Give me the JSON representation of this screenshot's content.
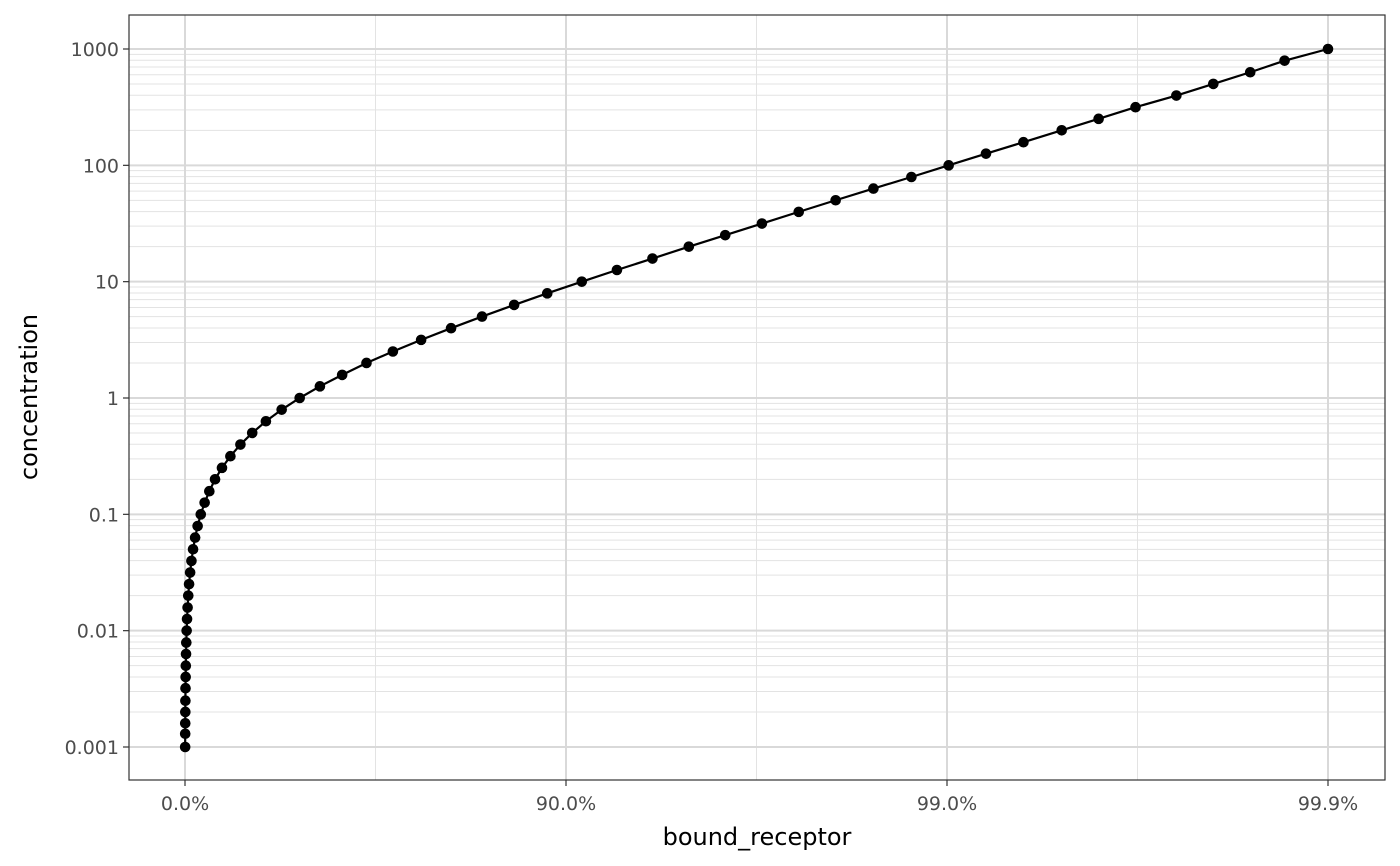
{
  "chart_data": {
    "type": "line",
    "xlabel": "bound_receptor",
    "ylabel": "concentration",
    "x_scale": "logit-percent",
    "y_scale": "log10",
    "grid": true,
    "legend": "none",
    "series_color": "#000000",
    "xlim": [
      0.0,
      0.999
    ],
    "ylim": [
      0.001,
      1000
    ],
    "x_ticks": [
      {
        "value": 0.0,
        "label": "0.0%"
      },
      {
        "value": 0.9,
        "label": "90.0%"
      },
      {
        "value": 0.99,
        "label": "99.0%"
      },
      {
        "value": 0.999,
        "label": "99.9%"
      }
    ],
    "y_ticks": [
      {
        "value": 0.001,
        "label": "0.001"
      },
      {
        "value": 0.01,
        "label": "0.01"
      },
      {
        "value": 0.1,
        "label": "0.1"
      },
      {
        "value": 1,
        "label": "1"
      },
      {
        "value": 10,
        "label": "10"
      },
      {
        "value": 100,
        "label": "100"
      },
      {
        "value": 1000,
        "label": "1000"
      }
    ],
    "series": [
      {
        "x": [
          0.001,
          0.0013,
          0.0016,
          0.002,
          0.0025,
          0.0032,
          0.004,
          0.005,
          0.0063,
          0.0079,
          0.01,
          0.0124,
          0.0156,
          0.0196,
          0.0245,
          0.0306,
          0.0382,
          0.0476,
          0.0593,
          0.0735,
          0.0909,
          0.112,
          0.1368,
          0.1661,
          0.2003,
          0.24,
          0.2847,
          0.3339,
          0.3868,
          0.4425,
          0.5,
          0.5575,
          0.6132,
          0.6661,
          0.7153,
          0.76,
          0.7997,
          0.8339,
          0.8632,
          0.888,
          0.9091,
          0.9265,
          0.9407,
          0.9524,
          0.9618,
          0.9694,
          0.9755,
          0.9804,
          0.9844,
          0.9876,
          0.9901,
          0.9921,
          0.9937,
          0.995,
          0.996,
          0.9968,
          0.9975,
          0.998,
          0.9984,
          0.9987,
          0.999
        ],
        "y": [
          0.001,
          0.0013,
          0.0016,
          0.002,
          0.0025,
          0.0032,
          0.004,
          0.005,
          0.0063,
          0.0079,
          0.01,
          0.0126,
          0.0158,
          0.02,
          0.0251,
          0.0316,
          0.0398,
          0.0501,
          0.0631,
          0.0794,
          0.1,
          0.126,
          0.158,
          0.2,
          0.251,
          0.316,
          0.398,
          0.501,
          0.631,
          0.794,
          1,
          1.26,
          1.58,
          2,
          2.51,
          3.16,
          3.98,
          5.01,
          6.31,
          7.94,
          10,
          12.6,
          15.8,
          20,
          25.1,
          31.6,
          39.8,
          50.1,
          63.1,
          79.4,
          100,
          126,
          158,
          200,
          251,
          316,
          398,
          501,
          631,
          794,
          1000
        ]
      }
    ]
  }
}
